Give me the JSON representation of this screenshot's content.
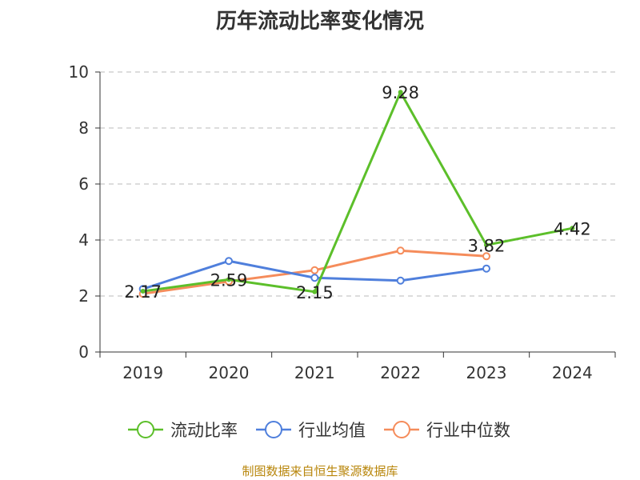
{
  "title": "历年流动比率变化情况",
  "source": "制图数据来自恒生聚源数据库",
  "colors": {
    "流动比率": "#5cbf2a",
    "行业均值": "#4f7fdc",
    "行业中位数": "#f58c5b",
    "axis": "#333333",
    "grid": "#bbbbbb"
  },
  "chart_data": {
    "type": "line",
    "categories": [
      "2019",
      "2020",
      "2021",
      "2022",
      "2023",
      "2024"
    ],
    "ylim": [
      0,
      10
    ],
    "yticks": [
      "0",
      "2",
      "4",
      "6",
      "8",
      "10"
    ],
    "grid": "dashed horizontal",
    "legend_position": "bottom",
    "series": [
      {
        "name": "流动比率",
        "values": [
          2.17,
          2.59,
          2.15,
          9.28,
          3.82,
          4.42
        ],
        "labels": [
          "2.17",
          "2.59",
          "2.15",
          "9.28",
          "3.82",
          "4.42"
        ]
      },
      {
        "name": "行业均值",
        "values": [
          2.25,
          3.25,
          2.65,
          2.55,
          2.98,
          null
        ]
      },
      {
        "name": "行业中位数",
        "values": [
          2.08,
          2.52,
          2.92,
          3.62,
          3.42,
          null
        ]
      }
    ]
  }
}
